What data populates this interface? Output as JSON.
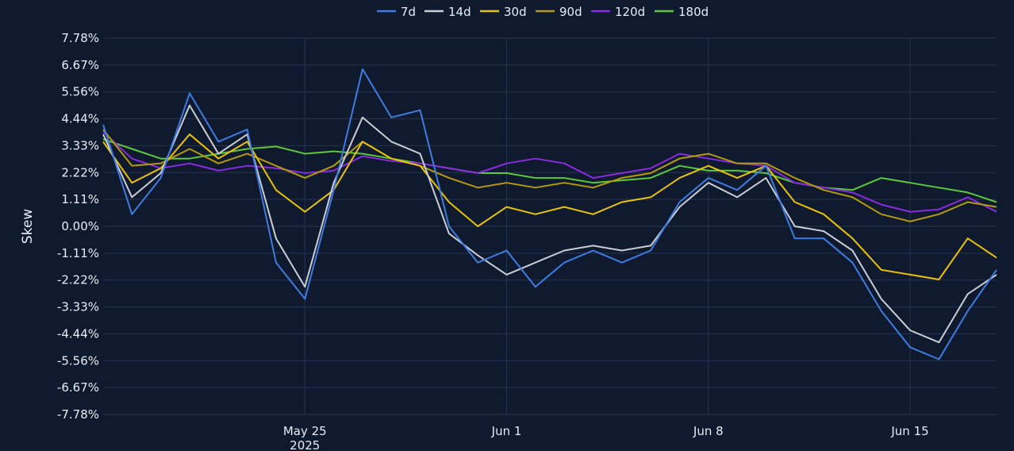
{
  "chart_data": {
    "type": "line",
    "title": "",
    "xlabel": "",
    "ylabel": "Skew",
    "y_unit": "%",
    "ylim": [
      -7.78,
      7.78
    ],
    "y_ticks": [
      "7.78%",
      "6.67%",
      "5.56%",
      "4.44%",
      "3.33%",
      "2.22%",
      "1.11%",
      "0.00%",
      "-1.11%",
      "-2.22%",
      "-3.33%",
      "-4.44%",
      "-5.56%",
      "-6.67%",
      "-7.78%"
    ],
    "x_range": [
      "2025-05-18",
      "2025-06-18"
    ],
    "x_ticks": [
      {
        "date": "2025-05-25",
        "label": "May 25",
        "sublabel": "2025"
      },
      {
        "date": "2025-06-01",
        "label": "Jun 1",
        "sublabel": ""
      },
      {
        "date": "2025-06-08",
        "label": "Jun 8",
        "sublabel": ""
      },
      {
        "date": "2025-06-15",
        "label": "Jun 15",
        "sublabel": ""
      }
    ],
    "grid": true,
    "legend_position": "top-center",
    "x": [
      "2025-05-18",
      "2025-05-19",
      "2025-05-20",
      "2025-05-21",
      "2025-05-22",
      "2025-05-23",
      "2025-05-24",
      "2025-05-25",
      "2025-05-26",
      "2025-05-27",
      "2025-05-28",
      "2025-05-29",
      "2025-05-30",
      "2025-05-31",
      "2025-06-01",
      "2025-06-02",
      "2025-06-03",
      "2025-06-04",
      "2025-06-05",
      "2025-06-06",
      "2025-06-07",
      "2025-06-08",
      "2025-06-09",
      "2025-06-10",
      "2025-06-11",
      "2025-06-12",
      "2025-06-13",
      "2025-06-14",
      "2025-06-15",
      "2025-06-16",
      "2025-06-17",
      "2025-06-18"
    ],
    "series": [
      {
        "name": "7d",
        "color": "#3f7be0",
        "values": [
          4.2,
          0.5,
          2.0,
          5.5,
          3.5,
          4.0,
          -1.5,
          -3.0,
          1.5,
          6.5,
          4.5,
          4.8,
          0.0,
          -1.5,
          -1.0,
          -2.5,
          -1.5,
          -1.0,
          -1.5,
          -1.0,
          1.0,
          2.0,
          1.5,
          2.5,
          -0.5,
          -0.5,
          -1.5,
          -3.5,
          -5.0,
          -5.5,
          -3.5,
          -1.8
        ]
      },
      {
        "name": "14d",
        "color": "#c9ced6",
        "values": [
          3.8,
          1.2,
          2.2,
          5.0,
          3.0,
          3.8,
          -0.5,
          -2.5,
          1.8,
          4.5,
          3.5,
          3.0,
          -0.3,
          -1.2,
          -2.0,
          -1.5,
          -1.0,
          -0.8,
          -1.0,
          -0.8,
          0.8,
          1.8,
          1.2,
          2.0,
          0.0,
          -0.2,
          -1.0,
          -3.0,
          -4.3,
          -4.8,
          -2.8,
          -2.0
        ]
      },
      {
        "name": "30d",
        "color": "#e8c20a",
        "values": [
          3.5,
          1.8,
          2.4,
          3.8,
          2.8,
          3.5,
          1.5,
          0.6,
          1.5,
          3.5,
          2.8,
          2.5,
          1.0,
          0.0,
          0.8,
          0.5,
          0.8,
          0.5,
          1.0,
          1.2,
          2.0,
          2.5,
          2.0,
          2.5,
          1.0,
          0.5,
          -0.5,
          -1.8,
          -2.0,
          -2.2,
          -0.5,
          -1.3
        ]
      },
      {
        "name": "90d",
        "color": "#b59a0e",
        "values": [
          4.0,
          2.5,
          2.6,
          3.2,
          2.6,
          3.0,
          2.5,
          2.0,
          2.5,
          3.5,
          2.8,
          2.5,
          2.0,
          1.6,
          1.8,
          1.6,
          1.8,
          1.6,
          2.0,
          2.2,
          2.8,
          3.0,
          2.6,
          2.6,
          2.0,
          1.5,
          1.2,
          0.5,
          0.2,
          0.5,
          1.0,
          0.8
        ]
      },
      {
        "name": "120d",
        "color": "#8a2be2",
        "values": [
          3.9,
          2.8,
          2.4,
          2.6,
          2.3,
          2.5,
          2.4,
          2.2,
          2.3,
          2.9,
          2.7,
          2.6,
          2.4,
          2.2,
          2.6,
          2.8,
          2.6,
          2.0,
          2.2,
          2.4,
          3.0,
          2.8,
          2.6,
          2.5,
          1.8,
          1.6,
          1.4,
          0.9,
          0.6,
          0.7,
          1.2,
          0.6
        ]
      },
      {
        "name": "180d",
        "color": "#5cc83a",
        "values": [
          3.6,
          3.2,
          2.8,
          2.8,
          3.0,
          3.2,
          3.3,
          3.0,
          3.1,
          3.0,
          2.8,
          2.6,
          2.4,
          2.2,
          2.2,
          2.0,
          2.0,
          1.8,
          1.9,
          2.0,
          2.5,
          2.3,
          2.3,
          2.2,
          1.8,
          1.6,
          1.5,
          2.0,
          1.8,
          1.6,
          1.4,
          1.0
        ]
      }
    ]
  }
}
